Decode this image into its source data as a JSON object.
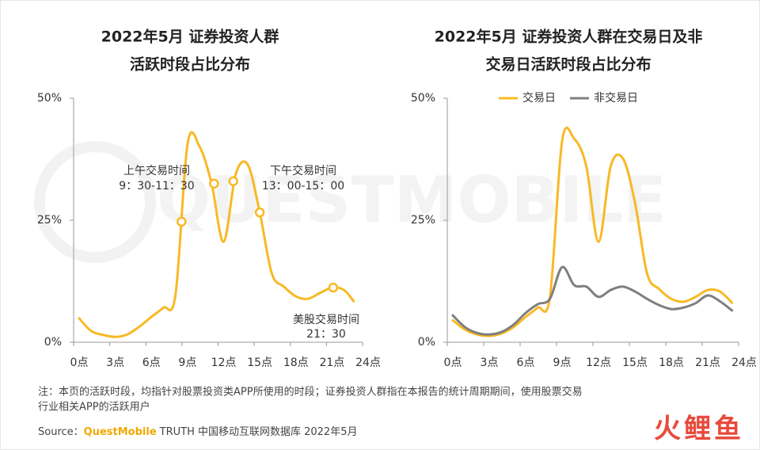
{
  "chart_data": [
    {
      "type": "line",
      "title": [
        "2022年5月 证券投资人群",
        "活跃时段占比分布"
      ],
      "xlim": [
        0,
        24
      ],
      "xticks": [
        {
          "value": 0,
          "label": "0点"
        },
        {
          "value": 3,
          "label": "3点"
        },
        {
          "value": 6,
          "label": "6点"
        },
        {
          "value": 9,
          "label": "9点"
        },
        {
          "value": 12,
          "label": "12点"
        },
        {
          "value": 15,
          "label": "15点"
        },
        {
          "value": 18,
          "label": "18点"
        },
        {
          "value": 21,
          "label": "21点"
        },
        {
          "value": 24,
          "label": "24点"
        }
      ],
      "ylim": [
        0,
        50
      ],
      "yticks": [
        {
          "value": 0,
          "label": "0%"
        },
        {
          "value": 25,
          "label": "25%"
        },
        {
          "value": 50,
          "label": "50%"
        }
      ],
      "series": [
        {
          "color": "#f7b924",
          "x": [
            0,
            1,
            2,
            3,
            4,
            5,
            6,
            7,
            8,
            9,
            10,
            11,
            12,
            13,
            14,
            15,
            16,
            17,
            18,
            19,
            20,
            21,
            22,
            22.8
          ],
          "values": [
            4.9,
            2.3,
            1.5,
            1.1,
            1.6,
            3.2,
            5.2,
            7.1,
            9.7,
            40.6,
            40.1,
            32.5,
            20.6,
            34.4,
            36.4,
            26.6,
            14.1,
            11.4,
            9.4,
            8.9,
            10.1,
            11.2,
            10.7,
            8.4
          ]
        }
      ],
      "markers": {
        "x": [
          8.5,
          11.2,
          12.8,
          15,
          21.1
        ],
        "values": [
          24.7,
          32.5,
          33.0,
          26.6,
          11.2
        ]
      },
      "annotations": [
        "上午交易时间",
        "9：30-11：30",
        "下午交易时间",
        "13：00-15：00",
        "美股交易时间",
        "21：30"
      ]
    },
    {
      "type": "line",
      "title": [
        "2022年5月 证券投资人群在交易日及非",
        "交易日活跃时段占比分布"
      ],
      "xlim": [
        0,
        24
      ],
      "xticks": [
        {
          "value": 0,
          "label": "0点"
        },
        {
          "value": 3,
          "label": "3点"
        },
        {
          "value": 6,
          "label": "6点"
        },
        {
          "value": 9,
          "label": "9点"
        },
        {
          "value": 12,
          "label": "12点"
        },
        {
          "value": 15,
          "label": "15点"
        },
        {
          "value": 18,
          "label": "18点"
        },
        {
          "value": 21,
          "label": "21点"
        },
        {
          "value": 24,
          "label": "24点"
        }
      ],
      "ylim": [
        0,
        50
      ],
      "yticks": [
        {
          "value": 0,
          "label": "0%"
        },
        {
          "value": 25,
          "label": "25%"
        },
        {
          "value": 50,
          "label": "50%"
        }
      ],
      "legend": "top",
      "series": [
        {
          "name": "交易日",
          "color": "#f7b924",
          "x": [
            0,
            1,
            2,
            3,
            4,
            5,
            6,
            7,
            8,
            9,
            10,
            11,
            12,
            13,
            14,
            15,
            16,
            17,
            18,
            19,
            20,
            21,
            22,
            23
          ],
          "values": [
            4.5,
            2.6,
            1.6,
            1.3,
            1.8,
            3.1,
            5.2,
            7.1,
            9.3,
            41.2,
            41.7,
            36.0,
            20.6,
            36.0,
            37.7,
            28.7,
            14.1,
            10.9,
            8.9,
            8.3,
            9.3,
            10.7,
            10.4,
            8.1
          ]
        },
        {
          "name": "非交易日",
          "color": "#7f7f7f",
          "x": [
            0,
            1,
            2,
            3,
            4,
            5,
            6,
            7,
            8,
            9,
            10,
            11,
            12,
            13,
            14,
            15,
            16,
            17,
            18,
            19,
            20,
            21,
            22,
            23
          ],
          "values": [
            5.5,
            3.1,
            1.9,
            1.6,
            2.1,
            3.6,
            6.0,
            7.8,
            8.9,
            15.4,
            11.7,
            11.4,
            9.3,
            10.7,
            11.4,
            10.4,
            8.9,
            7.6,
            6.8,
            7.1,
            8.0,
            9.6,
            8.4,
            6.5
          ]
        }
      ]
    }
  ],
  "footer": {
    "note": [
      "注：本页的活跃时段，均指针对股票投资类APP所使用的时段；证券投资人群指在本报告的统计周期期间，使用股票交易",
      "行业相关APP的活跃用户"
    ],
    "source_label": "Source：",
    "brand": "QuestMobile",
    "source_rest": "TRUTH 中国移动互联网数据库 2022年5月",
    "logo": "火鲤鱼",
    "watermark": "QUESTMOBILE"
  }
}
